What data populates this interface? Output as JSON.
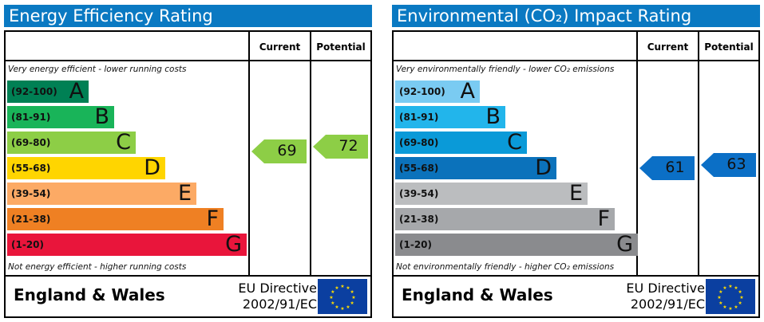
{
  "panels": [
    {
      "title": "Energy Efficiency Rating",
      "col_current": "Current",
      "col_potential": "Potential",
      "top_note": "Very energy efficient - lower running costs",
      "bottom_note": "Not energy efficient - higher running costs",
      "bands": [
        {
          "range": "(92-100)",
          "letter": "A",
          "color": "#008054"
        },
        {
          "range": "(81-91)",
          "letter": "B",
          "color": "#19b459"
        },
        {
          "range": "(69-80)",
          "letter": "C",
          "color": "#8dce46"
        },
        {
          "range": "(55-68)",
          "letter": "D",
          "color": "#ffd500"
        },
        {
          "range": "(39-54)",
          "letter": "E",
          "color": "#fcaa65"
        },
        {
          "range": "(21-38)",
          "letter": "F",
          "color": "#ef8023"
        },
        {
          "range": "(1-20)",
          "letter": "G",
          "color": "#e9153b"
        }
      ],
      "current": {
        "value": "69",
        "band": "C",
        "color": "#8dce46"
      },
      "potential": {
        "value": "72",
        "band": "C",
        "color": "#8dce46"
      },
      "country": "England & Wales",
      "directive_line1": "EU Directive",
      "directive_line2": "2002/91/EC",
      "header_color": "#0a79c2"
    },
    {
      "title": "Environmental (CO₂) Impact Rating",
      "col_current": "Current",
      "col_potential": "Potential",
      "top_note": "Very environmentally friendly - lower CO₂ emissions",
      "bottom_note": "Not environmentally friendly - higher CO₂ emissions",
      "bands": [
        {
          "range": "(92-100)",
          "letter": "A",
          "color": "#7acbf2"
        },
        {
          "range": "(81-91)",
          "letter": "B",
          "color": "#22b5eb"
        },
        {
          "range": "(69-80)",
          "letter": "C",
          "color": "#0a9ad8"
        },
        {
          "range": "(55-68)",
          "letter": "D",
          "color": "#0b72bb"
        },
        {
          "range": "(39-54)",
          "letter": "E",
          "color": "#bbbdbf"
        },
        {
          "range": "(21-38)",
          "letter": "F",
          "color": "#a6a8ab"
        },
        {
          "range": "(1-20)",
          "letter": "G",
          "color": "#8a8b8e"
        }
      ],
      "current": {
        "value": "61",
        "band": "D",
        "color": "#0b6fc6"
      },
      "potential": {
        "value": "63",
        "band": "D",
        "color": "#0b6fc6"
      },
      "country": "England & Wales",
      "directive_line1": "EU Directive",
      "directive_line2": "2002/91/EC",
      "header_color": "#0a79c2"
    }
  ]
}
